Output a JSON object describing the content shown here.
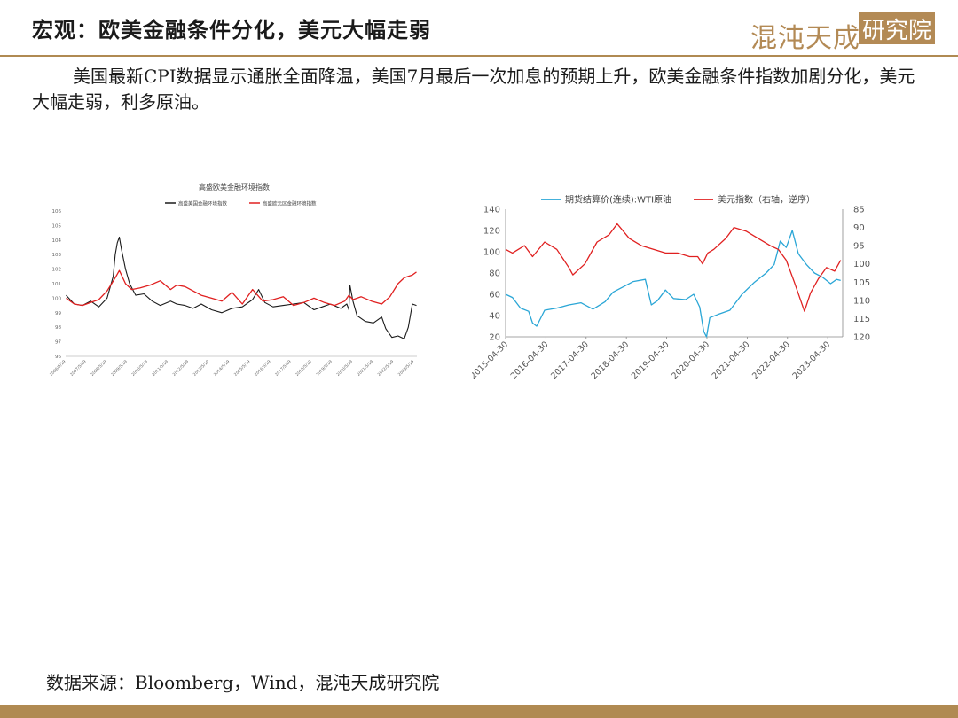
{
  "header": {
    "title": "宏观：欧美金融条件分化，美元大幅走弱",
    "logo_script": "混沌天成",
    "logo_box": "研究院"
  },
  "summary": "美国最新CPI数据显示通胀全面降温，美国7月最后一次加息的预期上升，欧美金融条件指数加剧分化，美元大幅走弱，利多原油。",
  "footer": {
    "source": "数据来源：Bloomberg，Wind，混沌天成研究院"
  },
  "colors": {
    "accent": "#b08a52",
    "black_series": "#1a1a1a",
    "red_series": "#e02020",
    "blue_series": "#2aa6d6"
  },
  "chart_data": [
    {
      "type": "line",
      "title": "高盛欧美金融环境指数",
      "ylim": [
        96,
        106
      ],
      "yticks": [
        96,
        97,
        98,
        99,
        100,
        101,
        102,
        103,
        104,
        105,
        106
      ],
      "xlim": [
        2006.38,
        2023.52
      ],
      "xticks": [
        "2006/5/19",
        "2007/5/19",
        "2008/5/19",
        "2009/5/19",
        "2010/5/19",
        "2011/5/19",
        "2012/5/19",
        "2013/5/19",
        "2014/5/19",
        "2015/5/19",
        "2016/5/19",
        "2017/5/19",
        "2018/5/19",
        "2019/5/19",
        "2020/5/19",
        "2021/5/19",
        "2022/5/19",
        "2023/5/19"
      ],
      "legend_position": "top",
      "series": [
        {
          "name": "高盛美国金融环境指数",
          "color": "#1a1a1a",
          "x": [
            2006.4,
            2006.8,
            2007.2,
            2007.6,
            2008.0,
            2008.4,
            2008.7,
            2008.8,
            2008.9,
            2009.0,
            2009.1,
            2009.3,
            2009.5,
            2009.8,
            2010.2,
            2010.6,
            2011.0,
            2011.5,
            2011.8,
            2012.2,
            2012.6,
            2013.0,
            2013.5,
            2014.0,
            2014.5,
            2015.0,
            2015.5,
            2015.8,
            2016.1,
            2016.5,
            2017.0,
            2017.5,
            2018.0,
            2018.5,
            2018.9,
            2019.3,
            2019.8,
            2020.1,
            2020.2,
            2020.25,
            2020.4,
            2020.6,
            2021.0,
            2021.4,
            2021.8,
            2022.0,
            2022.3,
            2022.6,
            2022.9,
            2023.1,
            2023.3,
            2023.5
          ],
          "values": [
            100.2,
            99.6,
            99.5,
            99.8,
            99.4,
            100.0,
            101.5,
            103.0,
            103.8,
            104.2,
            103.4,
            102.0,
            101.0,
            100.2,
            100.3,
            99.8,
            99.5,
            99.8,
            99.6,
            99.5,
            99.3,
            99.6,
            99.2,
            99.0,
            99.3,
            99.4,
            99.9,
            100.6,
            99.7,
            99.4,
            99.5,
            99.6,
            99.7,
            99.2,
            99.4,
            99.6,
            99.3,
            99.6,
            99.2,
            100.9,
            99.8,
            98.8,
            98.4,
            98.3,
            98.7,
            97.9,
            97.3,
            97.4,
            97.2,
            98.0,
            99.6,
            99.5
          ]
        },
        {
          "name": "高盛欧元区金融环境指数",
          "color": "#e02020",
          "x": [
            2006.4,
            2006.8,
            2007.2,
            2007.6,
            2008.0,
            2008.4,
            2008.8,
            2009.0,
            2009.3,
            2009.6,
            2010.0,
            2010.5,
            2011.0,
            2011.5,
            2011.8,
            2012.2,
            2012.6,
            2013.0,
            2013.5,
            2014.0,
            2014.5,
            2015.0,
            2015.5,
            2016.0,
            2016.5,
            2017.0,
            2017.5,
            2018.0,
            2018.5,
            2019.0,
            2019.5,
            2020.0,
            2020.2,
            2020.4,
            2020.8,
            2021.3,
            2021.8,
            2022.2,
            2022.6,
            2022.9,
            2023.1,
            2023.3,
            2023.5
          ],
          "values": [
            100.0,
            99.6,
            99.5,
            99.7,
            99.9,
            100.5,
            101.4,
            101.9,
            101.0,
            100.6,
            100.7,
            100.9,
            101.2,
            100.6,
            100.9,
            100.8,
            100.5,
            100.2,
            100.0,
            99.8,
            100.4,
            99.6,
            100.6,
            99.8,
            99.9,
            100.1,
            99.5,
            99.7,
            100.0,
            99.7,
            99.5,
            99.8,
            100.2,
            99.9,
            100.1,
            99.8,
            99.6,
            100.1,
            101.0,
            101.4,
            101.5,
            101.6,
            101.8
          ]
        }
      ]
    },
    {
      "type": "line",
      "title": "",
      "ylim": [
        20,
        140
      ],
      "yticks": [
        20,
        40,
        60,
        80,
        100,
        120,
        140
      ],
      "y2lim": [
        85,
        120
      ],
      "y2ticks": [
        85,
        90,
        95,
        100,
        105,
        110,
        115,
        120
      ],
      "y2_inverted": true,
      "xlim": [
        2015.33,
        2023.7
      ],
      "xticks": [
        "2015-04-30",
        "2016-04-30",
        "2017-04-30",
        "2018-04-30",
        "2019-04-30",
        "2020-04-30",
        "2021-04-30",
        "2022-04-30",
        "2023-04-30"
      ],
      "legend_position": "top",
      "series": [
        {
          "name": "期货结算价(连续):WTI原油",
          "color": "#2aa6d6",
          "axis": "left",
          "x": [
            2015.33,
            2015.5,
            2015.7,
            2015.9,
            2016.0,
            2016.1,
            2016.3,
            2016.6,
            2016.9,
            2017.2,
            2017.5,
            2017.8,
            2018.0,
            2018.3,
            2018.5,
            2018.8,
            2018.95,
            2019.1,
            2019.3,
            2019.5,
            2019.8,
            2020.0,
            2020.15,
            2020.25,
            2020.32,
            2020.4,
            2020.6,
            2020.9,
            2021.2,
            2021.5,
            2021.8,
            2022.0,
            2022.15,
            2022.3,
            2022.45,
            2022.6,
            2022.8,
            2023.0,
            2023.2,
            2023.4,
            2023.55,
            2023.65
          ],
          "values": [
            60,
            57,
            47,
            44,
            33,
            30,
            45,
            47,
            50,
            52,
            46,
            53,
            62,
            68,
            72,
            74,
            50,
            54,
            64,
            56,
            55,
            60,
            48,
            25,
            20,
            38,
            41,
            45,
            60,
            71,
            80,
            88,
            110,
            104,
            120,
            98,
            88,
            80,
            76,
            70,
            74,
            73
          ]
        },
        {
          "name": "美元指数（右轴，逆序）",
          "color": "#e02020",
          "axis": "right",
          "x": [
            2015.33,
            2015.5,
            2015.8,
            2016.0,
            2016.3,
            2016.6,
            2016.9,
            2017.0,
            2017.3,
            2017.6,
            2017.9,
            2018.1,
            2018.4,
            2018.7,
            2019.0,
            2019.3,
            2019.6,
            2019.9,
            2020.1,
            2020.22,
            2020.35,
            2020.5,
            2020.8,
            2021.0,
            2021.3,
            2021.6,
            2021.9,
            2022.1,
            2022.3,
            2022.5,
            2022.75,
            2022.9,
            2023.1,
            2023.3,
            2023.5,
            2023.65
          ],
          "values": [
            96,
            97,
            95,
            98,
            94,
            96,
            101,
            103,
            100,
            94,
            92,
            89,
            93,
            95,
            96,
            97,
            97,
            98,
            98,
            100,
            97,
            96,
            93,
            90,
            91,
            93,
            95,
            96,
            99,
            105,
            113,
            108,
            104,
            101,
            102,
            99
          ]
        }
      ]
    }
  ]
}
